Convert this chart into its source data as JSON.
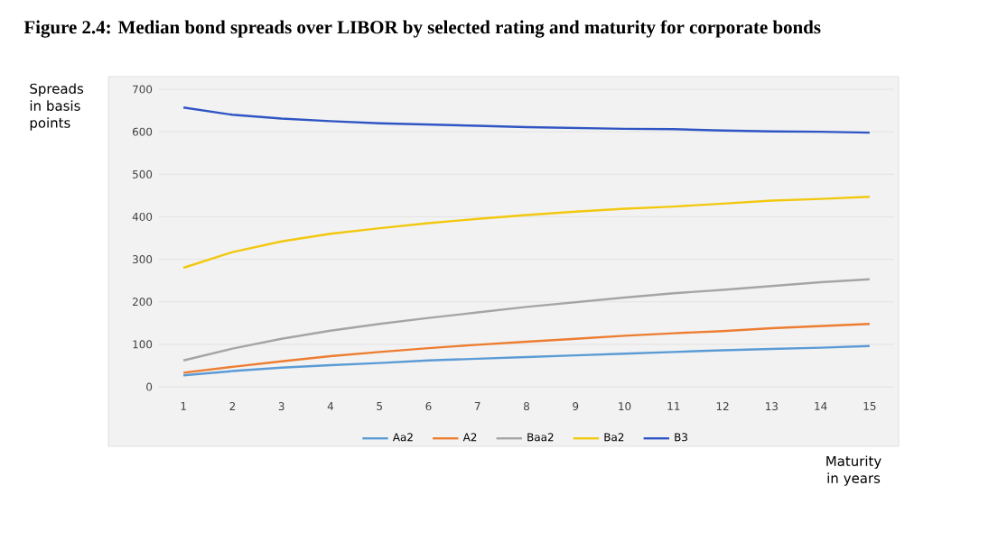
{
  "chart_data": {
    "type": "line",
    "title": "Figure 2.4: Median bond spreads over LIBOR by selected rating and maturity for corporate bonds",
    "ylabel": "Spreads in basis points",
    "xlabel": "Maturity in years",
    "categories": [
      "1",
      "2",
      "3",
      "4",
      "5",
      "6",
      "7",
      "8",
      "9",
      "10",
      "11",
      "12",
      "13",
      "14",
      "15"
    ],
    "series": [
      {
        "name": "Aa2",
        "color": "#5b9bd5",
        "values": [
          27,
          37,
          45,
          51,
          56,
          62,
          66,
          70,
          74,
          78,
          82,
          86,
          89,
          92,
          96
        ]
      },
      {
        "name": "A2",
        "color": "#ed7d31",
        "values": [
          33,
          47,
          60,
          72,
          82,
          91,
          99,
          106,
          113,
          120,
          126,
          131,
          138,
          143,
          148
        ]
      },
      {
        "name": "Baa2",
        "color": "#a5a5a5",
        "values": [
          62,
          90,
          113,
          132,
          148,
          162,
          175,
          188,
          199,
          210,
          220,
          228,
          237,
          246,
          253
        ]
      },
      {
        "name": "Ba2",
        "color": "#f2c80f",
        "values": [
          280,
          317,
          342,
          360,
          373,
          385,
          395,
          404,
          412,
          419,
          424,
          431,
          438,
          442,
          447
        ]
      },
      {
        "name": "B3",
        "color": "#2f55c4",
        "values": [
          657,
          640,
          631,
          625,
          620,
          617,
          614,
          611,
          609,
          607,
          606,
          603,
          601,
          600,
          598
        ]
      }
    ],
    "ylim": [
      0,
      700
    ],
    "yticks": [
      0,
      100,
      200,
      300,
      400,
      500,
      600,
      700
    ],
    "grid": "y",
    "legend": "bottom",
    "marker": "none",
    "line_style": "solid"
  }
}
